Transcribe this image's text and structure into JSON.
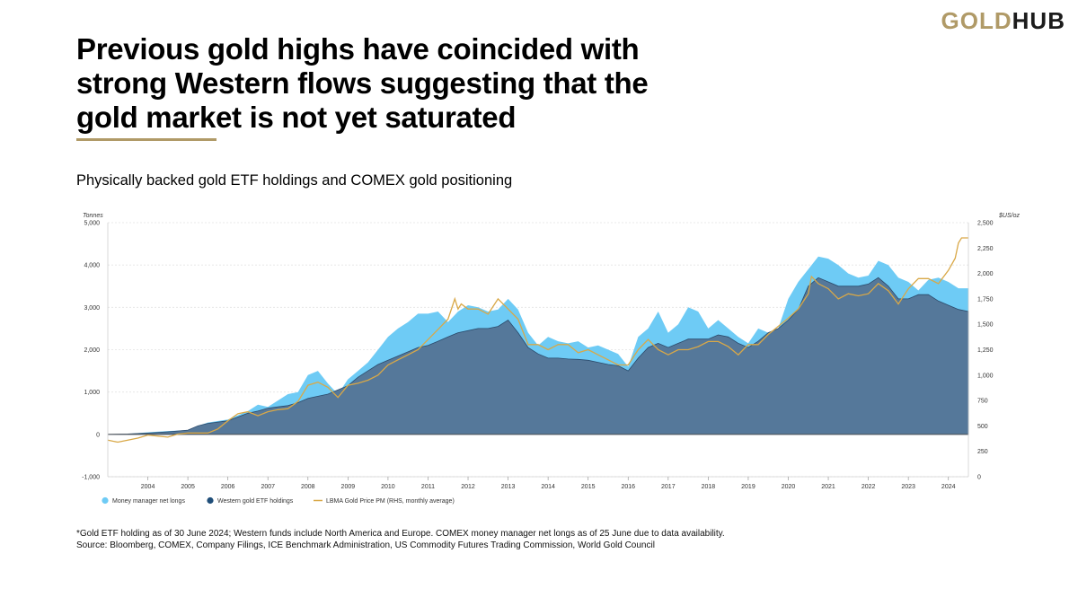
{
  "brand": {
    "logo_left": "GOLD",
    "logo_right": "HUB"
  },
  "header": {
    "title": "Previous gold highs have coincided with strong Western flows suggesting that the gold market is not yet saturated",
    "subtitle": "Physically backed gold ETF holdings and COMEX gold positioning"
  },
  "footnotes": {
    "note": "*Gold ETF holding as of 30 June 2024; Western funds include North America and Europe. COMEX money manager net longs as of 25 June due to data availability.",
    "source": "Source: Bloomberg, COMEX, Company Filings, ICE Benchmark Administration, US Commodity Futures Trading Commission, World Gold Council"
  },
  "colors": {
    "money_manager": "#6ECBF5",
    "western_etf": "#55789A",
    "western_etf_marker": "#1F4E79",
    "gold_price": "#D9A847",
    "accent": "#B09A67"
  },
  "chart_data": {
    "type": "area",
    "left_axis": {
      "label": "Tonnes",
      "min": -1000,
      "max": 5000,
      "ticks": [
        "-1,000",
        "0",
        "1,000",
        "2,000",
        "3,000",
        "4,000",
        "5,000"
      ],
      "tick_values": [
        -1000,
        0,
        1000,
        2000,
        3000,
        4000,
        5000
      ]
    },
    "right_axis": {
      "label": "$US/oz",
      "min": 0,
      "max": 2500,
      "ticks": [
        "0",
        "250",
        "500",
        "750",
        "1,000",
        "1,250",
        "1,500",
        "1,750",
        "2,000",
        "2,250",
        "2,500"
      ],
      "tick_values": [
        0,
        250,
        500,
        750,
        1000,
        1250,
        1500,
        1750,
        2000,
        2250,
        2500
      ]
    },
    "x_range": [
      2003.0,
      2024.5
    ],
    "x_ticks": [
      "2004",
      "2005",
      "2006",
      "2007",
      "2008",
      "2009",
      "2010",
      "2011",
      "2012",
      "2013",
      "2014",
      "2015",
      "2016",
      "2017",
      "2018",
      "2019",
      "2020",
      "2021",
      "2022",
      "2023",
      "2024"
    ],
    "x_tick_values": [
      2004,
      2005,
      2006,
      2007,
      2008,
      2009,
      2010,
      2011,
      2012,
      2013,
      2014,
      2015,
      2016,
      2017,
      2018,
      2019,
      2020,
      2021,
      2022,
      2023,
      2024
    ],
    "grid": true,
    "legend_placement": "bottom-left",
    "series": [
      {
        "name": "Money manager net longs",
        "axis": "left",
        "style": "area",
        "x": [
          2003.0,
          2003.5,
          2004.0,
          2004.5,
          2005.0,
          2005.25,
          2005.5,
          2006.0,
          2006.5,
          2006.75,
          2007.0,
          2007.25,
          2007.5,
          2007.75,
          2008.0,
          2008.25,
          2008.5,
          2008.75,
          2009.0,
          2009.25,
          2009.5,
          2009.75,
          2010.0,
          2010.25,
          2010.5,
          2010.75,
          2011.0,
          2011.25,
          2011.5,
          2011.75,
          2012.0,
          2012.25,
          2012.5,
          2012.75,
          2013.0,
          2013.25,
          2013.5,
          2013.75,
          2014.0,
          2014.25,
          2014.5,
          2014.75,
          2015.0,
          2015.25,
          2015.5,
          2015.75,
          2016.0,
          2016.25,
          2016.5,
          2016.75,
          2017.0,
          2017.25,
          2017.5,
          2017.75,
          2018.0,
          2018.25,
          2018.5,
          2018.75,
          2019.0,
          2019.25,
          2019.5,
          2019.75,
          2020.0,
          2020.25,
          2020.5,
          2020.75,
          2021.0,
          2021.25,
          2021.5,
          2021.75,
          2022.0,
          2022.25,
          2022.5,
          2022.75,
          2023.0,
          2023.25,
          2023.5,
          2023.75,
          2024.0,
          2024.25,
          2024.5
        ],
        "values": [
          0,
          10,
          50,
          80,
          100,
          200,
          280,
          350,
          550,
          700,
          650,
          800,
          950,
          1000,
          1400,
          1500,
          1200,
          950,
          1300,
          1500,
          1700,
          2000,
          2300,
          2500,
          2650,
          2850,
          2850,
          2900,
          2650,
          2900,
          3050,
          3000,
          2900,
          2950,
          3200,
          2950,
          2400,
          2100,
          2300,
          2200,
          2150,
          2200,
          2050,
          2100,
          2000,
          1900,
          1600,
          2300,
          2500,
          2900,
          2400,
          2600,
          3000,
          2900,
          2500,
          2700,
          2500,
          2300,
          2150,
          2500,
          2400,
          2500,
          3200,
          3600,
          3900,
          4200,
          4150,
          4000,
          3800,
          3700,
          3750,
          4100,
          4000,
          3700,
          3600,
          3400,
          3650,
          3700,
          3600,
          3450,
          3450
        ]
      },
      {
        "name": "Western gold ETF holdings",
        "axis": "left",
        "style": "area",
        "x": [
          2003.0,
          2003.5,
          2004.0,
          2004.5,
          2005.0,
          2005.25,
          2005.5,
          2006.0,
          2006.5,
          2006.75,
          2007.0,
          2007.25,
          2007.5,
          2007.75,
          2008.0,
          2008.25,
          2008.5,
          2008.75,
          2009.0,
          2009.25,
          2009.5,
          2009.75,
          2010.0,
          2010.25,
          2010.5,
          2010.75,
          2011.0,
          2011.25,
          2011.5,
          2011.75,
          2012.0,
          2012.25,
          2012.5,
          2012.75,
          2013.0,
          2013.25,
          2013.5,
          2013.75,
          2014.0,
          2014.25,
          2014.5,
          2014.75,
          2015.0,
          2015.25,
          2015.5,
          2015.75,
          2016.0,
          2016.25,
          2016.5,
          2016.75,
          2017.0,
          2017.25,
          2017.5,
          2017.75,
          2018.0,
          2018.25,
          2018.5,
          2018.75,
          2019.0,
          2019.25,
          2019.5,
          2019.75,
          2020.0,
          2020.25,
          2020.5,
          2020.75,
          2021.0,
          2021.25,
          2021.5,
          2021.75,
          2022.0,
          2022.25,
          2022.5,
          2022.75,
          2023.0,
          2023.25,
          2023.5,
          2023.75,
          2024.0,
          2024.25,
          2024.5
        ],
        "values": [
          0,
          10,
          30,
          60,
          100,
          200,
          260,
          320,
          500,
          550,
          620,
          650,
          680,
          750,
          850,
          900,
          950,
          1050,
          1150,
          1350,
          1500,
          1650,
          1750,
          1850,
          1950,
          2050,
          2100,
          2200,
          2300,
          2400,
          2450,
          2500,
          2500,
          2550,
          2700,
          2400,
          2050,
          1900,
          1800,
          1800,
          1780,
          1770,
          1750,
          1700,
          1650,
          1620,
          1500,
          1800,
          2050,
          2150,
          2050,
          2150,
          2250,
          2250,
          2250,
          2350,
          2300,
          2150,
          2050,
          2200,
          2400,
          2500,
          2700,
          2950,
          3500,
          3700,
          3600,
          3500,
          3500,
          3500,
          3550,
          3700,
          3500,
          3200,
          3200,
          3300,
          3300,
          3150,
          3050,
          2950,
          2900
        ]
      },
      {
        "name": "LBMA Gold Price PM (RHS, monthly average)",
        "axis": "right",
        "style": "line",
        "x": [
          2003.0,
          2003.25,
          2003.5,
          2003.75,
          2004.0,
          2004.25,
          2004.5,
          2004.75,
          2005.0,
          2005.25,
          2005.5,
          2005.75,
          2006.0,
          2006.25,
          2006.5,
          2006.75,
          2007.0,
          2007.25,
          2007.5,
          2007.75,
          2008.0,
          2008.25,
          2008.5,
          2008.75,
          2009.0,
          2009.25,
          2009.5,
          2009.75,
          2010.0,
          2010.25,
          2010.5,
          2010.75,
          2011.0,
          2011.25,
          2011.5,
          2011.67,
          2011.75,
          2011.83,
          2012.0,
          2012.25,
          2012.5,
          2012.75,
          2013.0,
          2013.25,
          2013.5,
          2013.75,
          2014.0,
          2014.25,
          2014.5,
          2014.75,
          2015.0,
          2015.25,
          2015.5,
          2015.75,
          2016.0,
          2016.25,
          2016.5,
          2016.75,
          2017.0,
          2017.25,
          2017.5,
          2017.75,
          2018.0,
          2018.25,
          2018.5,
          2018.75,
          2019.0,
          2019.25,
          2019.5,
          2019.75,
          2020.0,
          2020.25,
          2020.5,
          2020.58,
          2020.75,
          2021.0,
          2021.25,
          2021.5,
          2021.75,
          2022.0,
          2022.25,
          2022.5,
          2022.75,
          2023.0,
          2023.25,
          2023.5,
          2023.75,
          2024.0,
          2024.17,
          2024.25,
          2024.33,
          2024.5
        ],
        "values": [
          360,
          340,
          360,
          380,
          410,
          400,
          390,
          420,
          430,
          430,
          430,
          470,
          550,
          620,
          640,
          600,
          640,
          660,
          670,
          740,
          900,
          930,
          880,
          780,
          900,
          920,
          950,
          1000,
          1100,
          1150,
          1200,
          1250,
          1350,
          1450,
          1550,
          1750,
          1650,
          1700,
          1650,
          1650,
          1600,
          1750,
          1650,
          1550,
          1300,
          1300,
          1250,
          1300,
          1300,
          1220,
          1250,
          1200,
          1150,
          1100,
          1100,
          1250,
          1350,
          1250,
          1200,
          1250,
          1250,
          1280,
          1330,
          1330,
          1280,
          1200,
          1300,
          1300,
          1400,
          1480,
          1560,
          1650,
          1800,
          1970,
          1900,
          1850,
          1750,
          1800,
          1780,
          1800,
          1900,
          1830,
          1700,
          1850,
          1950,
          1950,
          1900,
          2030,
          2150,
          2300,
          2350,
          2350
        ]
      }
    ]
  }
}
